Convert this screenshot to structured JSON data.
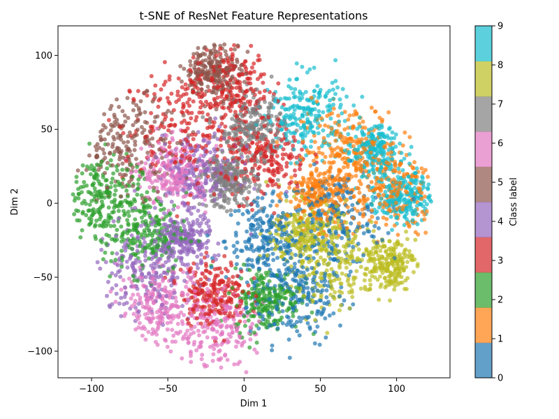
{
  "chart_data": {
    "type": "scatter",
    "title": "t-SNE of ResNet Feature Representations",
    "xlabel": "Dim 1",
    "ylabel": "Dim 2",
    "xlim": [
      -122,
      135
    ],
    "ylim": [
      -118,
      120
    ],
    "xticks": [
      -100,
      -50,
      0,
      50,
      100
    ],
    "yticks": [
      -100,
      -50,
      0,
      50,
      100
    ],
    "tick_labels_x": [
      "−100",
      "−50",
      "0",
      "50",
      "100"
    ],
    "tick_labels_y": [
      "−100",
      "−50",
      "0",
      "50",
      "100"
    ],
    "grid": false,
    "colorbar": {
      "label": "Class label",
      "ticks": [
        "0",
        "1",
        "2",
        "3",
        "4",
        "5",
        "6",
        "7",
        "8",
        "9"
      ],
      "colors": [
        "#1f77b4",
        "#ff7f0e",
        "#2ca02c",
        "#d62728",
        "#9467bd",
        "#8c564b",
        "#e377c2",
        "#7f7f7f",
        "#bcbd22",
        "#17becf"
      ],
      "alpha": 0.7
    },
    "clusters": [
      {
        "class": 0,
        "x": 35,
        "y": -62,
        "spread": 18
      },
      {
        "class": 0,
        "x": 15,
        "y": -25,
        "spread": 15
      },
      {
        "class": 0,
        "x": 60,
        "y": -10,
        "spread": 18
      },
      {
        "class": 1,
        "x": 95,
        "y": 10,
        "spread": 18
      },
      {
        "class": 1,
        "x": 70,
        "y": 35,
        "spread": 18
      },
      {
        "class": 1,
        "x": 50,
        "y": 5,
        "spread": 12
      },
      {
        "class": 2,
        "x": -95,
        "y": 5,
        "spread": 15
      },
      {
        "class": 2,
        "x": -65,
        "y": -20,
        "spread": 15
      },
      {
        "class": 2,
        "x": 15,
        "y": -65,
        "spread": 12
      },
      {
        "class": 3,
        "x": -40,
        "y": 50,
        "spread": 22
      },
      {
        "class": 3,
        "x": -10,
        "y": 80,
        "spread": 15
      },
      {
        "class": 3,
        "x": -20,
        "y": -60,
        "spread": 12
      },
      {
        "class": 3,
        "x": 15,
        "y": 30,
        "spread": 15
      },
      {
        "class": 4,
        "x": -65,
        "y": -45,
        "spread": 18
      },
      {
        "class": 4,
        "x": -30,
        "y": 20,
        "spread": 15
      },
      {
        "class": 4,
        "x": -40,
        "y": -25,
        "spread": 10
      },
      {
        "class": 5,
        "x": -75,
        "y": 40,
        "spread": 18
      },
      {
        "class": 5,
        "x": -20,
        "y": 90,
        "spread": 10
      },
      {
        "class": 6,
        "x": -20,
        "y": -85,
        "spread": 15
      },
      {
        "class": 6,
        "x": -55,
        "y": -70,
        "spread": 15
      },
      {
        "class": 6,
        "x": -45,
        "y": 20,
        "spread": 12
      },
      {
        "class": 7,
        "x": 5,
        "y": 50,
        "spread": 12
      },
      {
        "class": 7,
        "x": -10,
        "y": 15,
        "spread": 10
      },
      {
        "class": 8,
        "x": 60,
        "y": -40,
        "spread": 18
      },
      {
        "class": 8,
        "x": 95,
        "y": -40,
        "spread": 10
      },
      {
        "class": 8,
        "x": 40,
        "y": -20,
        "spread": 12
      },
      {
        "class": 9,
        "x": 40,
        "y": 60,
        "spread": 15
      },
      {
        "class": 9,
        "x": 85,
        "y": 35,
        "spread": 10
      },
      {
        "class": 9,
        "x": 105,
        "y": 5,
        "spread": 10
      }
    ],
    "points_per_cluster": 220
  }
}
